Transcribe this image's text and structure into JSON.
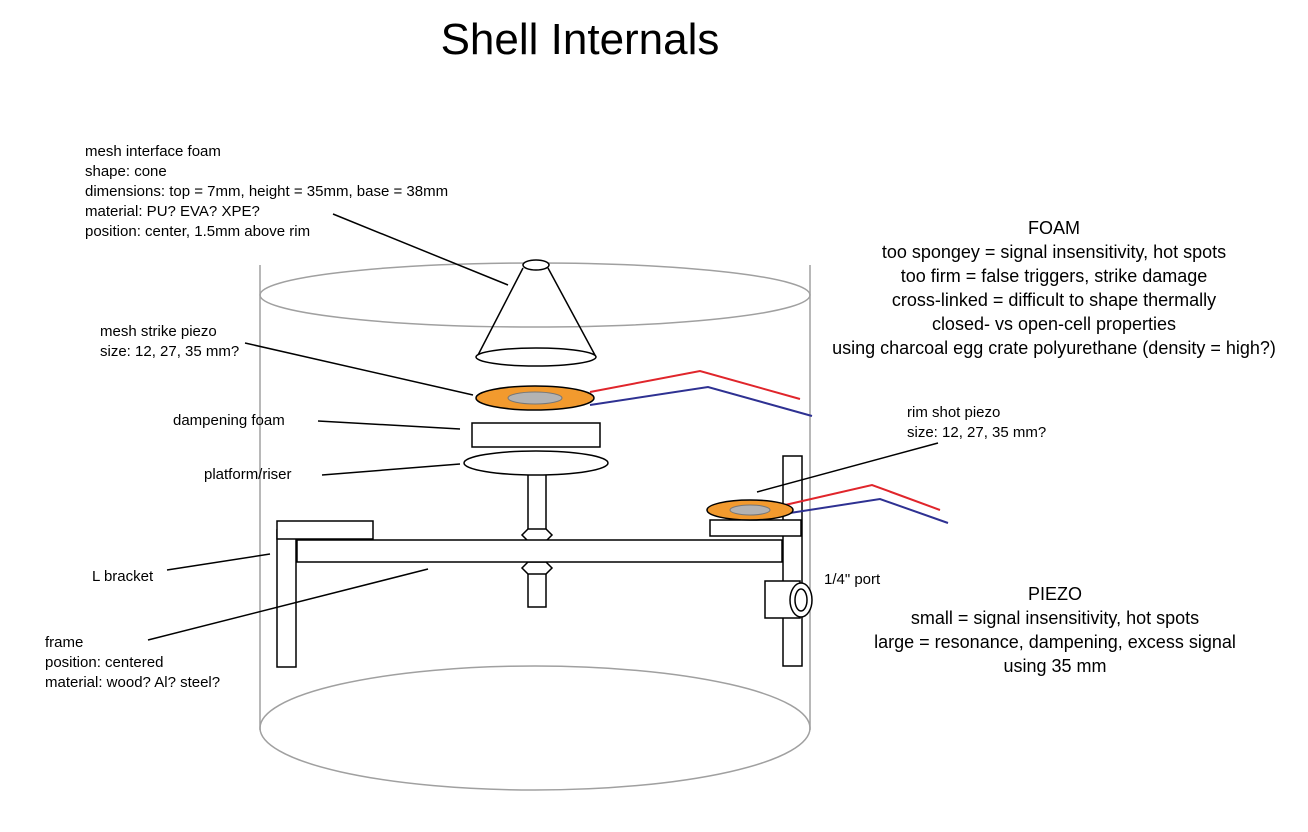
{
  "title": "Shell Internals",
  "colors": {
    "outline": "#000000",
    "shell": "#a0a0a0",
    "piezo_fill": "#f29a2e",
    "piezo_core": "#b3b3b3",
    "wire_red": "#e0252b",
    "wire_blue": "#2e3192"
  },
  "labels": {
    "mesh_interface_foam": [
      "mesh interface foam",
      "shape: cone",
      "dimensions: top = 7mm, height = 35mm, base = 38mm",
      "material: PU? EVA?  XPE?",
      "position: center, 1.5mm above rim"
    ],
    "mesh_strike_piezo": [
      "mesh strike piezo",
      "size: 12, 27, 35 mm?"
    ],
    "dampening_foam": "dampening foam",
    "platform_riser": "platform/riser",
    "l_bracket": "L bracket",
    "frame": [
      "frame",
      "position: centered",
      "material: wood? Al? steel?"
    ],
    "rim_shot_piezo": [
      "rim shot piezo",
      "size: 12, 27, 35 mm?"
    ],
    "port": "1/4\" port"
  },
  "notes": {
    "foam": {
      "heading": "FOAM",
      "lines": [
        "too spongey = signal insensitivity, hot spots",
        "too firm = false triggers, strike damage",
        "cross-linked = difficult to shape thermally",
        "closed- vs open-cell properties",
        "using charcoal egg crate polyurethane (density = high?)"
      ]
    },
    "piezo": {
      "heading": "PIEZO",
      "lines": [
        "small = signal insensitivity, hot spots",
        "large = resonance, dampening, excess signal",
        "using 35 mm"
      ]
    }
  }
}
